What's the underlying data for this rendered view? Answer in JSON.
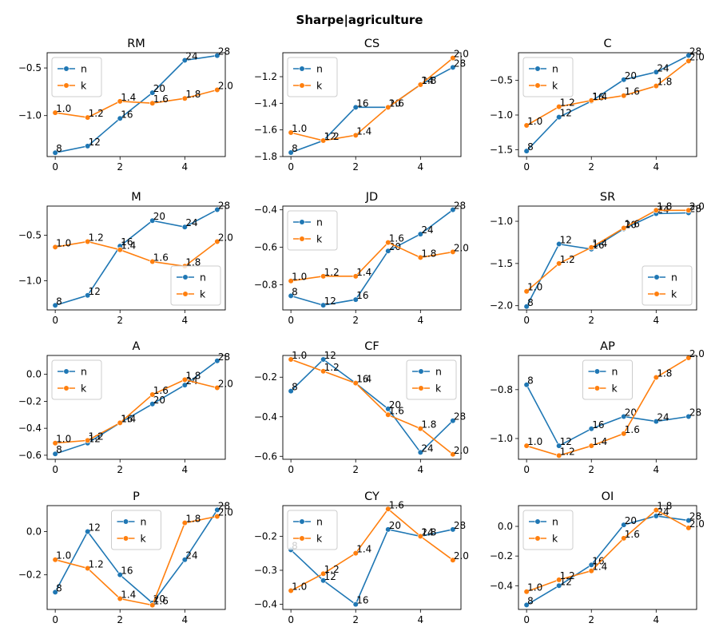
{
  "figure": {
    "suptitle": "Sharpe|agriculture"
  },
  "colors": {
    "n": "#1f77b4",
    "k": "#ff7f0e"
  },
  "chart_data": [
    {
      "type": "line",
      "title": "RM",
      "x": [
        0,
        1,
        2,
        3,
        4,
        5
      ],
      "ylim": [
        -1.43,
        -0.34
      ],
      "yticks": [
        -1.0,
        -0.5
      ],
      "legend": "upper left",
      "series": [
        {
          "name": "n",
          "values": [
            -1.39,
            -1.32,
            -1.03,
            -0.76,
            -0.42,
            -0.37
          ],
          "labels": [
            "8",
            "12",
            "16",
            "20",
            "24",
            "28"
          ]
        },
        {
          "name": "k",
          "values": [
            -0.97,
            -1.02,
            -0.85,
            -0.87,
            -0.82,
            -0.73
          ],
          "labels": [
            "1.0",
            "1.2",
            "1.4",
            "1.6",
            "1.8",
            "2.0"
          ]
        }
      ]
    },
    {
      "type": "line",
      "title": "CS",
      "x": [
        0,
        1,
        2,
        3,
        4,
        5
      ],
      "ylim": [
        -1.8,
        -1.02
      ],
      "yticks": [
        -1.8,
        -1.6,
        -1.4,
        -1.2
      ],
      "legend": "upper left",
      "series": [
        {
          "name": "n",
          "values": [
            -1.77,
            -1.68,
            -1.43,
            -1.43,
            -1.26,
            -1.13
          ],
          "labels": [
            "8",
            "12",
            "16",
            "20",
            "24",
            "28"
          ]
        },
        {
          "name": "k",
          "values": [
            -1.62,
            -1.68,
            -1.64,
            -1.43,
            -1.26,
            -1.06
          ],
          "labels": [
            "1.0",
            "1.2",
            "1.4",
            "1.6",
            "1.8",
            "2.0"
          ]
        }
      ]
    },
    {
      "type": "line",
      "title": "C",
      "x": [
        0,
        1,
        2,
        3,
        4,
        5
      ],
      "ylim": [
        -1.6,
        -0.1
      ],
      "yticks": [
        -1.5,
        -1.0,
        -0.5
      ],
      "legend": "upper left",
      "series": [
        {
          "name": "n",
          "values": [
            -1.52,
            -1.03,
            -0.8,
            -0.49,
            -0.38,
            -0.14
          ],
          "labels": [
            "8",
            "12",
            "16",
            "20",
            "24",
            "28"
          ]
        },
        {
          "name": "k",
          "values": [
            -1.15,
            -0.88,
            -0.79,
            -0.72,
            -0.58,
            -0.22
          ],
          "labels": [
            "1.0",
            "1.2",
            "1.4",
            "1.6",
            "1.8",
            "2.0"
          ]
        }
      ]
    },
    {
      "type": "line",
      "title": "M",
      "x": [
        0,
        1,
        2,
        3,
        4,
        5
      ],
      "ylim": [
        -1.32,
        -0.18
      ],
      "yticks": [
        -1.0,
        -0.5
      ],
      "legend": "lower right",
      "series": [
        {
          "name": "n",
          "values": [
            -1.27,
            -1.16,
            -0.62,
            -0.34,
            -0.41,
            -0.22
          ],
          "labels": [
            "8",
            "12",
            "16",
            "20",
            "24",
            "28"
          ]
        },
        {
          "name": "k",
          "values": [
            -0.63,
            -0.57,
            -0.66,
            -0.79,
            -0.84,
            -0.57
          ],
          "labels": [
            "1.0",
            "1.2",
            "1.4",
            "1.6",
            "1.8",
            "2.0"
          ]
        }
      ]
    },
    {
      "type": "line",
      "title": "JD",
      "x": [
        0,
        1,
        2,
        3,
        4,
        5
      ],
      "ylim": [
        -0.935,
        -0.38
      ],
      "yticks": [
        -0.8,
        -0.6,
        -0.4
      ],
      "legend": "upper left",
      "series": [
        {
          "name": "n",
          "values": [
            -0.86,
            -0.91,
            -0.88,
            -0.62,
            -0.53,
            -0.4
          ],
          "labels": [
            "8",
            "12",
            "16",
            "20",
            "24",
            "28"
          ]
        },
        {
          "name": "k",
          "values": [
            -0.78,
            -0.755,
            -0.755,
            -0.575,
            -0.655,
            -0.625
          ],
          "labels": [
            "1.0",
            "1.2",
            "1.4",
            "1.6",
            "1.8",
            "2.0"
          ]
        }
      ]
    },
    {
      "type": "line",
      "title": "SR",
      "x": [
        0,
        1,
        2,
        3,
        4,
        5
      ],
      "ylim": [
        -2.05,
        -0.82
      ],
      "yticks": [
        -2.0,
        -1.5,
        -1.0
      ],
      "legend": "lower right",
      "series": [
        {
          "name": "n",
          "values": [
            -2.01,
            -1.27,
            -1.33,
            -1.09,
            -0.91,
            -0.9
          ],
          "labels": [
            "8",
            "12",
            "16",
            "20",
            "24",
            "28"
          ]
        },
        {
          "name": "k",
          "values": [
            -1.83,
            -1.5,
            -1.31,
            -1.08,
            -0.87,
            -0.87
          ],
          "labels": [
            "1.0",
            "1.2",
            "1.4",
            "1.6",
            "1.8",
            "2.0"
          ]
        }
      ]
    },
    {
      "type": "line",
      "title": "A",
      "x": [
        0,
        1,
        2,
        3,
        4,
        5
      ],
      "ylim": [
        -0.63,
        0.14
      ],
      "yticks": [
        -0.6,
        -0.4,
        -0.2,
        0.0
      ],
      "legend": "upper left",
      "series": [
        {
          "name": "n",
          "values": [
            -0.59,
            -0.51,
            -0.36,
            -0.22,
            -0.08,
            0.1
          ],
          "labels": [
            "8",
            "12",
            "16",
            "20",
            "24",
            "28"
          ]
        },
        {
          "name": "k",
          "values": [
            -0.51,
            -0.49,
            -0.36,
            -0.15,
            -0.04,
            -0.1
          ],
          "labels": [
            "1.0",
            "1.2",
            "1.4",
            "1.6",
            "1.8",
            "2.0"
          ]
        }
      ]
    },
    {
      "type": "line",
      "title": "CF",
      "x": [
        0,
        1,
        2,
        3,
        4,
        5
      ],
      "ylim": [
        -0.615,
        -0.09
      ],
      "yticks": [
        -0.6,
        -0.4,
        -0.2
      ],
      "legend": "upper right",
      "series": [
        {
          "name": "n",
          "values": [
            -0.27,
            -0.11,
            -0.23,
            -0.36,
            -0.58,
            -0.42
          ],
          "labels": [
            "8",
            "12",
            "16",
            "20",
            "24",
            "28"
          ]
        },
        {
          "name": "k",
          "values": [
            -0.11,
            -0.17,
            -0.23,
            -0.39,
            -0.46,
            -0.59
          ],
          "labels": [
            "1.0",
            "1.2",
            "1.4",
            "1.6",
            "1.8",
            "2.0"
          ]
        }
      ]
    },
    {
      "type": "line",
      "title": "AP",
      "x": [
        0,
        1,
        2,
        3,
        4,
        5
      ],
      "ylim": [
        -1.085,
        -0.66
      ],
      "yticks": [
        -1.0,
        -0.8
      ],
      "legend": "upper center",
      "series": [
        {
          "name": "n",
          "values": [
            -0.78,
            -1.03,
            -0.96,
            -0.91,
            -0.93,
            -0.91
          ],
          "labels": [
            "8",
            "12",
            "16",
            "20",
            "24",
            "28"
          ]
        },
        {
          "name": "k",
          "values": [
            -1.03,
            -1.07,
            -1.03,
            -0.98,
            -0.75,
            -0.67
          ],
          "labels": [
            "1.0",
            "1.2",
            "1.4",
            "1.6",
            "1.8",
            "2.0"
          ]
        }
      ]
    },
    {
      "type": "line",
      "title": "P",
      "x": [
        0,
        1,
        2,
        3,
        4,
        5
      ],
      "ylim": [
        -0.36,
        0.12
      ],
      "yticks": [
        -0.2,
        0.0
      ],
      "legend": "upper center",
      "series": [
        {
          "name": "n",
          "values": [
            -0.28,
            0.0,
            -0.2,
            -0.33,
            -0.13,
            0.1
          ],
          "labels": [
            "8",
            "12",
            "16",
            "20",
            "24",
            "28"
          ]
        },
        {
          "name": "k",
          "values": [
            -0.13,
            -0.17,
            -0.31,
            -0.34,
            0.04,
            0.07
          ],
          "labels": [
            "1.0",
            "1.2",
            "1.4",
            "1.6",
            "1.8",
            "2.0"
          ]
        }
      ]
    },
    {
      "type": "line",
      "title": "CY",
      "x": [
        0,
        1,
        2,
        3,
        4,
        5
      ],
      "ylim": [
        -0.415,
        -0.11
      ],
      "yticks": [
        -0.4,
        -0.3,
        -0.2
      ],
      "legend": "upper left",
      "series": [
        {
          "name": "n",
          "values": [
            -0.24,
            -0.33,
            -0.4,
            -0.18,
            -0.2,
            -0.18
          ],
          "labels": [
            "8",
            "12",
            "16",
            "20",
            "24",
            "28"
          ]
        },
        {
          "name": "k",
          "values": [
            -0.36,
            -0.31,
            -0.25,
            -0.12,
            -0.2,
            -0.27
          ],
          "labels": [
            "1.0",
            "1.2",
            "1.4",
            "1.6",
            "1.8",
            "2.0"
          ]
        }
      ]
    },
    {
      "type": "line",
      "title": "OI",
      "x": [
        0,
        1,
        2,
        3,
        4,
        5
      ],
      "ylim": [
        -0.56,
        0.14
      ],
      "yticks": [
        -0.4,
        -0.2,
        0.0
      ],
      "legend": "upper left",
      "series": [
        {
          "name": "n",
          "values": [
            -0.53,
            -0.4,
            -0.26,
            0.01,
            0.07,
            0.04
          ],
          "labels": [
            "8",
            "12",
            "16",
            "20",
            "24",
            "28"
          ]
        },
        {
          "name": "k",
          "values": [
            -0.44,
            -0.36,
            -0.3,
            -0.08,
            0.11,
            -0.01
          ],
          "labels": [
            "1.0",
            "1.2",
            "1.4",
            "1.6",
            "1.8",
            "2.0"
          ]
        }
      ]
    }
  ]
}
